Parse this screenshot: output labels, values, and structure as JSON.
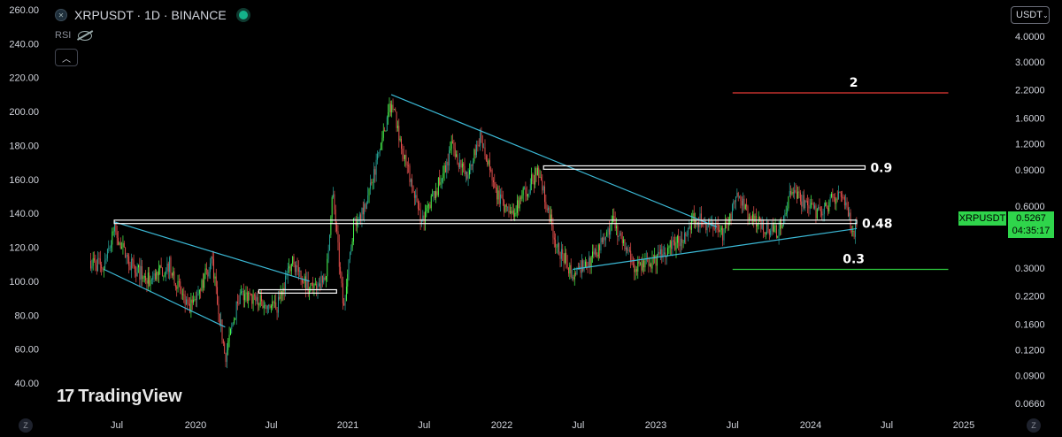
{
  "header": {
    "symbol": "XRPUSDT",
    "interval": "1D",
    "exchange": "BINANCE",
    "separator": "·",
    "indicator": "RSI",
    "logo_icon": "xrp-logo-icon",
    "live_icon": "market-open-dot-icon"
  },
  "currency_button": {
    "label": "USDT",
    "icon": "chevron-down-icon"
  },
  "brand": {
    "mark": "17",
    "name": "TradingView"
  },
  "price_label": {
    "symbol": "XRPUSDT",
    "price": "0.5267",
    "countdown": "04:35:17",
    "color": "#2fd54b"
  },
  "axis_buttons": {
    "left": "Z",
    "right": "Z"
  },
  "colors": {
    "up": "#26a69a",
    "down": "#ef5350",
    "up_bright": "#4cff50",
    "trend": "#3bb9d6",
    "resistance": "#e53935",
    "support": "#2ecc40"
  },
  "chart_data": {
    "type": "candlestick",
    "left_axis": {
      "ticks": [
        "260.00",
        "240.00",
        "220.00",
        "200.00",
        "180.00",
        "160.00",
        "140.00",
        "120.00",
        "100.00",
        "80.00",
        "60.00",
        "40.00"
      ],
      "range": [
        35,
        260
      ]
    },
    "right_axis": {
      "ticks": [
        "4.0000",
        "3.0000",
        "2.2000",
        "1.6000",
        "1.2000",
        "0.9000",
        "0.6000",
        "0.3000",
        "0.2200",
        "0.1600",
        "0.1200",
        "0.0900",
        "0.0660"
      ],
      "scale": "log"
    },
    "x_axis": {
      "ticks": [
        "Jul",
        "2020",
        "Jul",
        "2021",
        "Jul",
        "2022",
        "Jul",
        "2023",
        "Jul",
        "2024",
        "Jul",
        "2025"
      ]
    },
    "series_path": [
      [
        "2019-05-01",
        112
      ],
      [
        "2019-06-01",
        108
      ],
      [
        "2019-06-25",
        130
      ],
      [
        "2019-08-01",
        110
      ],
      [
        "2019-09-15",
        100
      ],
      [
        "2019-11-01",
        110
      ],
      [
        "2019-12-15",
        82
      ],
      [
        "2020-02-10",
        112
      ],
      [
        "2020-03-12",
        55
      ],
      [
        "2020-04-15",
        92
      ],
      [
        "2020-06-01",
        88
      ],
      [
        "2020-07-15",
        85
      ],
      [
        "2020-08-20",
        112
      ],
      [
        "2020-10-01",
        96
      ],
      [
        "2020-11-10",
        100
      ],
      [
        "2020-11-25",
        155
      ],
      [
        "2020-12-22",
        82
      ],
      [
        "2021-01-15",
        135
      ],
      [
        "2021-02-12",
        145
      ],
      [
        "2021-04-14",
        205
      ],
      [
        "2021-05-20",
        170
      ],
      [
        "2021-06-25",
        135
      ],
      [
        "2021-08-01",
        155
      ],
      [
        "2021-09-06",
        180
      ],
      [
        "2021-10-10",
        160
      ],
      [
        "2021-11-10",
        185
      ],
      [
        "2021-12-20",
        150
      ],
      [
        "2022-01-25",
        140
      ],
      [
        "2022-03-28",
        165
      ],
      [
        "2022-05-12",
        120
      ],
      [
        "2022-06-18",
        105
      ],
      [
        "2022-08-01",
        112
      ],
      [
        "2022-09-23",
        135
      ],
      [
        "2022-11-10",
        108
      ],
      [
        "2022-12-30",
        112
      ],
      [
        "2023-02-10",
        122
      ],
      [
        "2023-03-15",
        128
      ],
      [
        "2023-04-01",
        138
      ],
      [
        "2023-06-10",
        128
      ],
      [
        "2023-07-13",
        150
      ],
      [
        "2023-08-20",
        135
      ],
      [
        "2023-10-15",
        128
      ],
      [
        "2023-11-15",
        152
      ],
      [
        "2024-01-20",
        140
      ],
      [
        "2024-03-11",
        153
      ],
      [
        "2024-04-13",
        128
      ],
      [
        "2024-04-20",
        137
      ]
    ],
    "drawings": {
      "trendlines": [
        {
          "from": [
            "2019-06-01",
            107
          ],
          "to": [
            "2020-03-12",
            73
          ]
        },
        {
          "from": [
            "2019-06-25",
            135
          ],
          "to": [
            "2020-10-01",
            100
          ]
        },
        {
          "from": [
            "2021-04-14",
            210
          ],
          "to": [
            "2023-05-25",
            132
          ]
        },
        {
          "from": [
            "2022-06-18",
            107
          ],
          "to": [
            "2024-04-20",
            131
          ]
        }
      ],
      "zones": [
        {
          "from": "2019-06-25",
          "to": "2024-04-20",
          "top": 136,
          "bottom": 134
        },
        {
          "from": "2020-06-01",
          "to": "2020-12-05",
          "top": 95,
          "bottom": 93
        },
        {
          "from": "2022-04-10",
          "to": "2024-05-10",
          "top": 168,
          "bottom": 166
        }
      ],
      "levels": [
        {
          "label": "2",
          "value": 211,
          "color": "resistance",
          "from": "2023-07-01",
          "to": "2024-11-25"
        },
        {
          "label": "0.9",
          "value": 167,
          "color": "none",
          "from": "2022-04-10",
          "to": "2024-05-10"
        },
        {
          "label": "0.48",
          "value": 134,
          "color": "none",
          "from": "2019-06-25",
          "to": "2024-04-20"
        },
        {
          "label": "0.3",
          "value": 107,
          "color": "support",
          "from": "2023-07-01",
          "to": "2024-11-25"
        }
      ]
    }
  }
}
